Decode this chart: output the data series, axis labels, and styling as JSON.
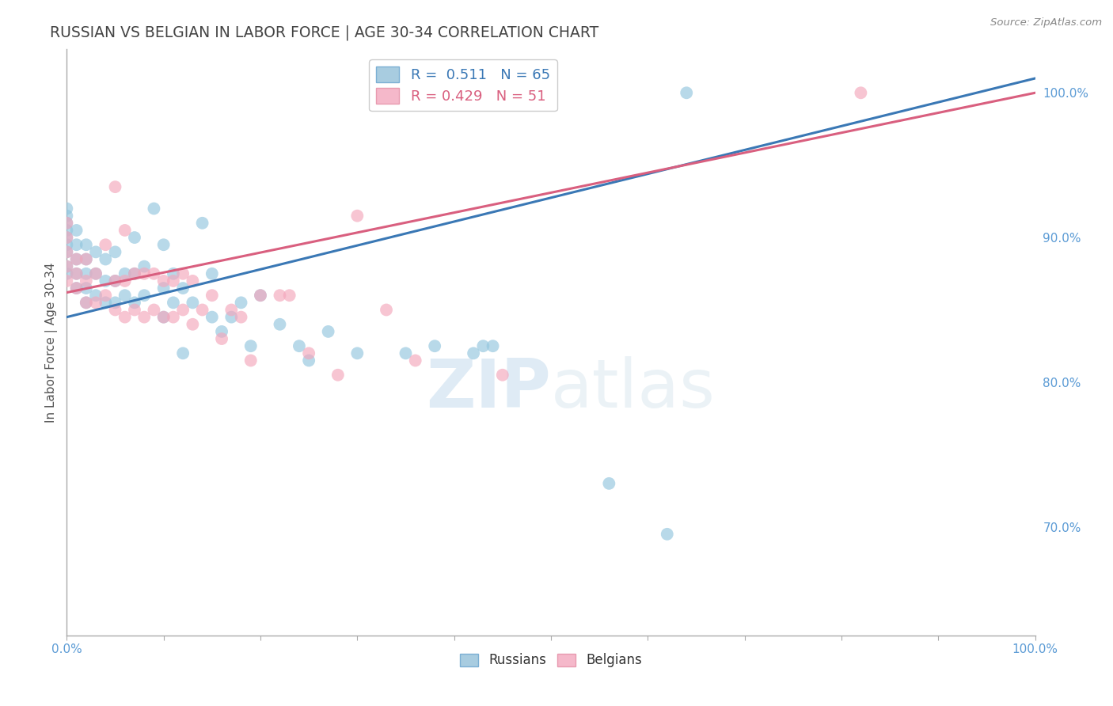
{
  "title": "RUSSIAN VS BELGIAN IN LABOR FORCE | AGE 30-34 CORRELATION CHART",
  "source": "Source: ZipAtlas.com",
  "ylabel": "In Labor Force | Age 30-34",
  "xlim": [
    0.0,
    1.0
  ],
  "ylim": [
    0.625,
    1.03
  ],
  "y_ticks_right": [
    1.0,
    0.9,
    0.8,
    0.7
  ],
  "y_tick_labels_right": [
    "100.0%",
    "90.0%",
    "80.0%",
    "70.0%"
  ],
  "legend_R_russian": "0.511",
  "legend_N_russian": "65",
  "legend_R_belgian": "0.429",
  "legend_N_belgian": "51",
  "russian_color": "#92c5de",
  "belgian_color": "#f4a6bb",
  "trend_russian_color": "#3a78b5",
  "trend_belgian_color": "#d95f7f",
  "grid_color": "#cccccc",
  "tick_color": "#5b9bd5",
  "russians_x": [
    0.0,
    0.0,
    0.0,
    0.0,
    0.0,
    0.0,
    0.0,
    0.0,
    0.0,
    0.01,
    0.01,
    0.01,
    0.01,
    0.01,
    0.02,
    0.02,
    0.02,
    0.02,
    0.02,
    0.03,
    0.03,
    0.03,
    0.04,
    0.04,
    0.04,
    0.05,
    0.05,
    0.05,
    0.06,
    0.06,
    0.07,
    0.07,
    0.07,
    0.08,
    0.08,
    0.09,
    0.1,
    0.1,
    0.1,
    0.11,
    0.11,
    0.12,
    0.12,
    0.13,
    0.14,
    0.15,
    0.15,
    0.16,
    0.17,
    0.18,
    0.19,
    0.2,
    0.22,
    0.24,
    0.25,
    0.27,
    0.3,
    0.35,
    0.38,
    0.42,
    0.43,
    0.44,
    0.56,
    0.62,
    0.64
  ],
  "russians_y": [
    0.875,
    0.88,
    0.89,
    0.895,
    0.9,
    0.905,
    0.91,
    0.915,
    0.92,
    0.865,
    0.875,
    0.885,
    0.895,
    0.905,
    0.855,
    0.865,
    0.875,
    0.885,
    0.895,
    0.86,
    0.875,
    0.89,
    0.855,
    0.87,
    0.885,
    0.855,
    0.87,
    0.89,
    0.86,
    0.875,
    0.855,
    0.875,
    0.9,
    0.86,
    0.88,
    0.92,
    0.845,
    0.865,
    0.895,
    0.855,
    0.875,
    0.82,
    0.865,
    0.855,
    0.91,
    0.845,
    0.875,
    0.835,
    0.845,
    0.855,
    0.825,
    0.86,
    0.84,
    0.825,
    0.815,
    0.835,
    0.82,
    0.82,
    0.825,
    0.82,
    0.825,
    0.825,
    0.73,
    0.695,
    1.0
  ],
  "belgians_x": [
    0.0,
    0.0,
    0.0,
    0.0,
    0.0,
    0.01,
    0.01,
    0.01,
    0.02,
    0.02,
    0.02,
    0.03,
    0.03,
    0.04,
    0.04,
    0.05,
    0.05,
    0.05,
    0.06,
    0.06,
    0.06,
    0.07,
    0.07,
    0.08,
    0.08,
    0.09,
    0.09,
    0.1,
    0.1,
    0.11,
    0.11,
    0.12,
    0.12,
    0.13,
    0.13,
    0.14,
    0.15,
    0.16,
    0.17,
    0.18,
    0.19,
    0.2,
    0.22,
    0.23,
    0.25,
    0.28,
    0.3,
    0.33,
    0.36,
    0.45,
    0.82
  ],
  "belgians_y": [
    0.87,
    0.88,
    0.89,
    0.9,
    0.91,
    0.865,
    0.875,
    0.885,
    0.855,
    0.87,
    0.885,
    0.855,
    0.875,
    0.86,
    0.895,
    0.85,
    0.87,
    0.935,
    0.845,
    0.87,
    0.905,
    0.85,
    0.875,
    0.845,
    0.875,
    0.85,
    0.875,
    0.845,
    0.87,
    0.845,
    0.87,
    0.85,
    0.875,
    0.84,
    0.87,
    0.85,
    0.86,
    0.83,
    0.85,
    0.845,
    0.815,
    0.86,
    0.86,
    0.86,
    0.82,
    0.805,
    0.915,
    0.85,
    0.815,
    0.805,
    1.0
  ],
  "trend_russian_x0": 0.0,
  "trend_russian_x1": 1.0,
  "trend_russian_y0": 0.845,
  "trend_russian_y1": 1.01,
  "trend_belgian_x0": 0.0,
  "trend_belgian_x1": 1.0,
  "trend_belgian_y0": 0.862,
  "trend_belgian_y1": 1.0
}
